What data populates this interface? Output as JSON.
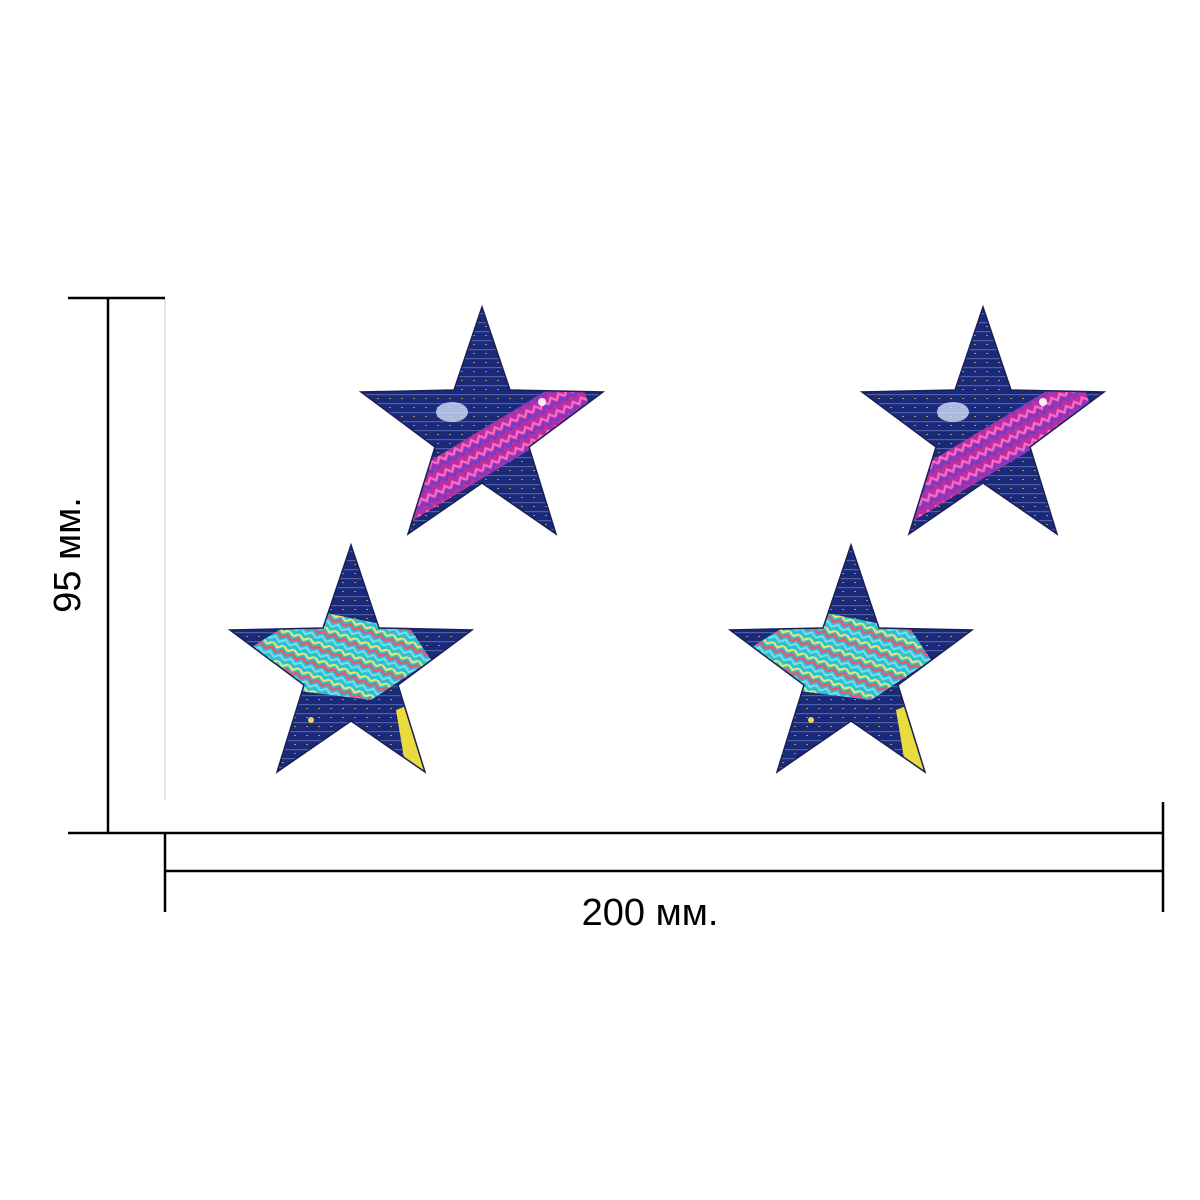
{
  "dimensions": {
    "height_label": "95 мм.",
    "width_label": "200 мм."
  },
  "stars": [
    {
      "name": "star-top-left",
      "theme": "pink-purple"
    },
    {
      "name": "star-top-right",
      "theme": "pink-purple"
    },
    {
      "name": "star-bottom-left",
      "theme": "cyan-rainbow-yellow"
    },
    {
      "name": "star-bottom-right",
      "theme": "cyan-rainbow-yellow"
    }
  ],
  "colors": {
    "star_base": "#1b2a78",
    "line": "#000000"
  }
}
